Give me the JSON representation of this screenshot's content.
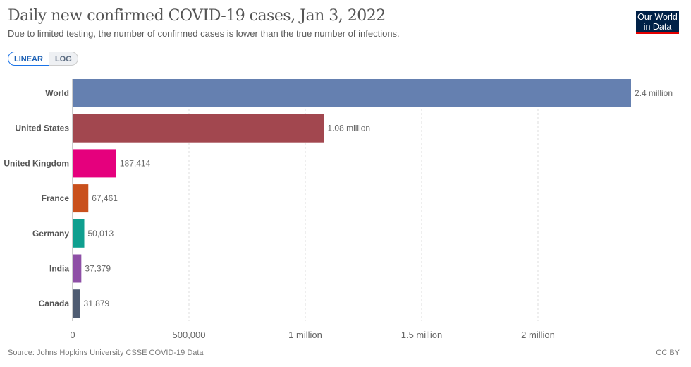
{
  "header": {
    "title": "Daily new confirmed COVID-19 cases, Jan 3, 2022",
    "subtitle": "Due to limited testing, the number of confirmed cases is lower than the true number of infections.",
    "linear_label": "LINEAR",
    "log_label": "LOG",
    "logo": "Our World in Data"
  },
  "footer": {
    "source": "Source: Johns Hopkins University CSSE COVID-19 Data",
    "license": "CC BY"
  },
  "chart_data": {
    "type": "bar",
    "orientation": "horizontal",
    "title": "Daily new confirmed COVID-19 cases, Jan 3, 2022",
    "categories": [
      "World",
      "United States",
      "United Kingdom",
      "France",
      "Germany",
      "India",
      "Canada"
    ],
    "values": [
      2400000,
      1080000,
      187414,
      67461,
      50013,
      37379,
      31879
    ],
    "value_labels": [
      "2.4 million",
      "1.08 million",
      "187,414",
      "67,461",
      "50,013",
      "37,379",
      "31,879"
    ],
    "colors": [
      "#6580b0",
      "#a2474f",
      "#e5007d",
      "#c9501c",
      "#0f9f8f",
      "#8e4fa6",
      "#4f5c72"
    ],
    "xticks": [
      0,
      500000,
      1000000,
      1500000,
      2000000
    ],
    "xtick_labels": [
      "0",
      "500,000",
      "1 million",
      "1.5 million",
      "2 million"
    ],
    "xlim": [
      0,
      2410000
    ],
    "scale": "linear",
    "grid": true
  }
}
